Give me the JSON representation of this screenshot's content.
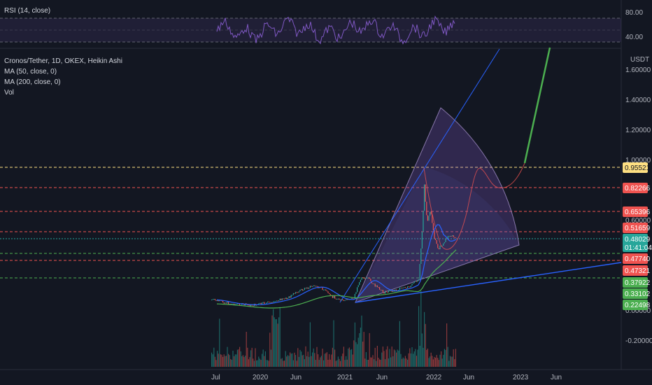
{
  "rsi_pane": {
    "legend": "RSI (14, close)",
    "ticks": [
      "80.00",
      "40.00"
    ]
  },
  "main_pane": {
    "legend_lines": [
      "Cronos/Tether, 1D, OKEX, Heikin Ashi",
      "MA (50, close, 0)",
      "MA (200, close, 0)",
      "Vol"
    ],
    "currency": "USDT"
  },
  "colors": {
    "background": "#131722",
    "rsi_line": "#7e57c2",
    "ma50": "#2962ff",
    "ma200": "#4caf50",
    "candle_up": "#26a69a",
    "candle_down": "#ef5350",
    "fan_fill": "#7e57c2",
    "projection": "#ef5350",
    "projection_green": "#4caf50",
    "trendline": "#2962ff"
  },
  "chart_data": {
    "type": "line",
    "title": "Cronos/Tether, 1D, OKEX, Heikin Ashi",
    "x_ticks": [
      "Jul",
      "2020",
      "Jun",
      "2021",
      "Jun",
      "2022",
      "Jun",
      "2023",
      "Jun"
    ],
    "y_ticks": [
      "1.60000",
      "1.40000",
      "1.20000",
      "1.00000",
      "0.60000",
      "0.00000",
      "-0.20000"
    ],
    "price_tags": [
      {
        "label": "0.95521",
        "color": "#ffe082",
        "text_color": "#131722"
      },
      {
        "label": "0.82266",
        "color": "#ef5350",
        "text_color": "#ffffff"
      },
      {
        "label": "0.65396",
        "color": "#ef5350",
        "text_color": "#ffffff"
      },
      {
        "label": "0.51659",
        "color": "#ef5350",
        "text_color": "#ffffff"
      },
      {
        "label": "0.48029",
        "color": "#26a69a",
        "text_color": "#ffffff"
      },
      {
        "label": "01:41:04",
        "color": "#26a69a",
        "text_color": "#ffffff"
      },
      {
        "label": "0.47740",
        "color": "#ef5350",
        "text_color": "#ffffff"
      },
      {
        "label": "0.47321",
        "color": "#ef5350",
        "text_color": "#ffffff"
      },
      {
        "label": "0.37922",
        "color": "#4caf50",
        "text_color": "#ffffff"
      },
      {
        "label": "0.33102",
        "color": "#4caf50",
        "text_color": "#ffffff"
      },
      {
        "label": "0.22498",
        "color": "#4caf50",
        "text_color": "#ffffff"
      }
    ],
    "rsi_levels": [
      70,
      50,
      30
    ],
    "grid": false
  }
}
